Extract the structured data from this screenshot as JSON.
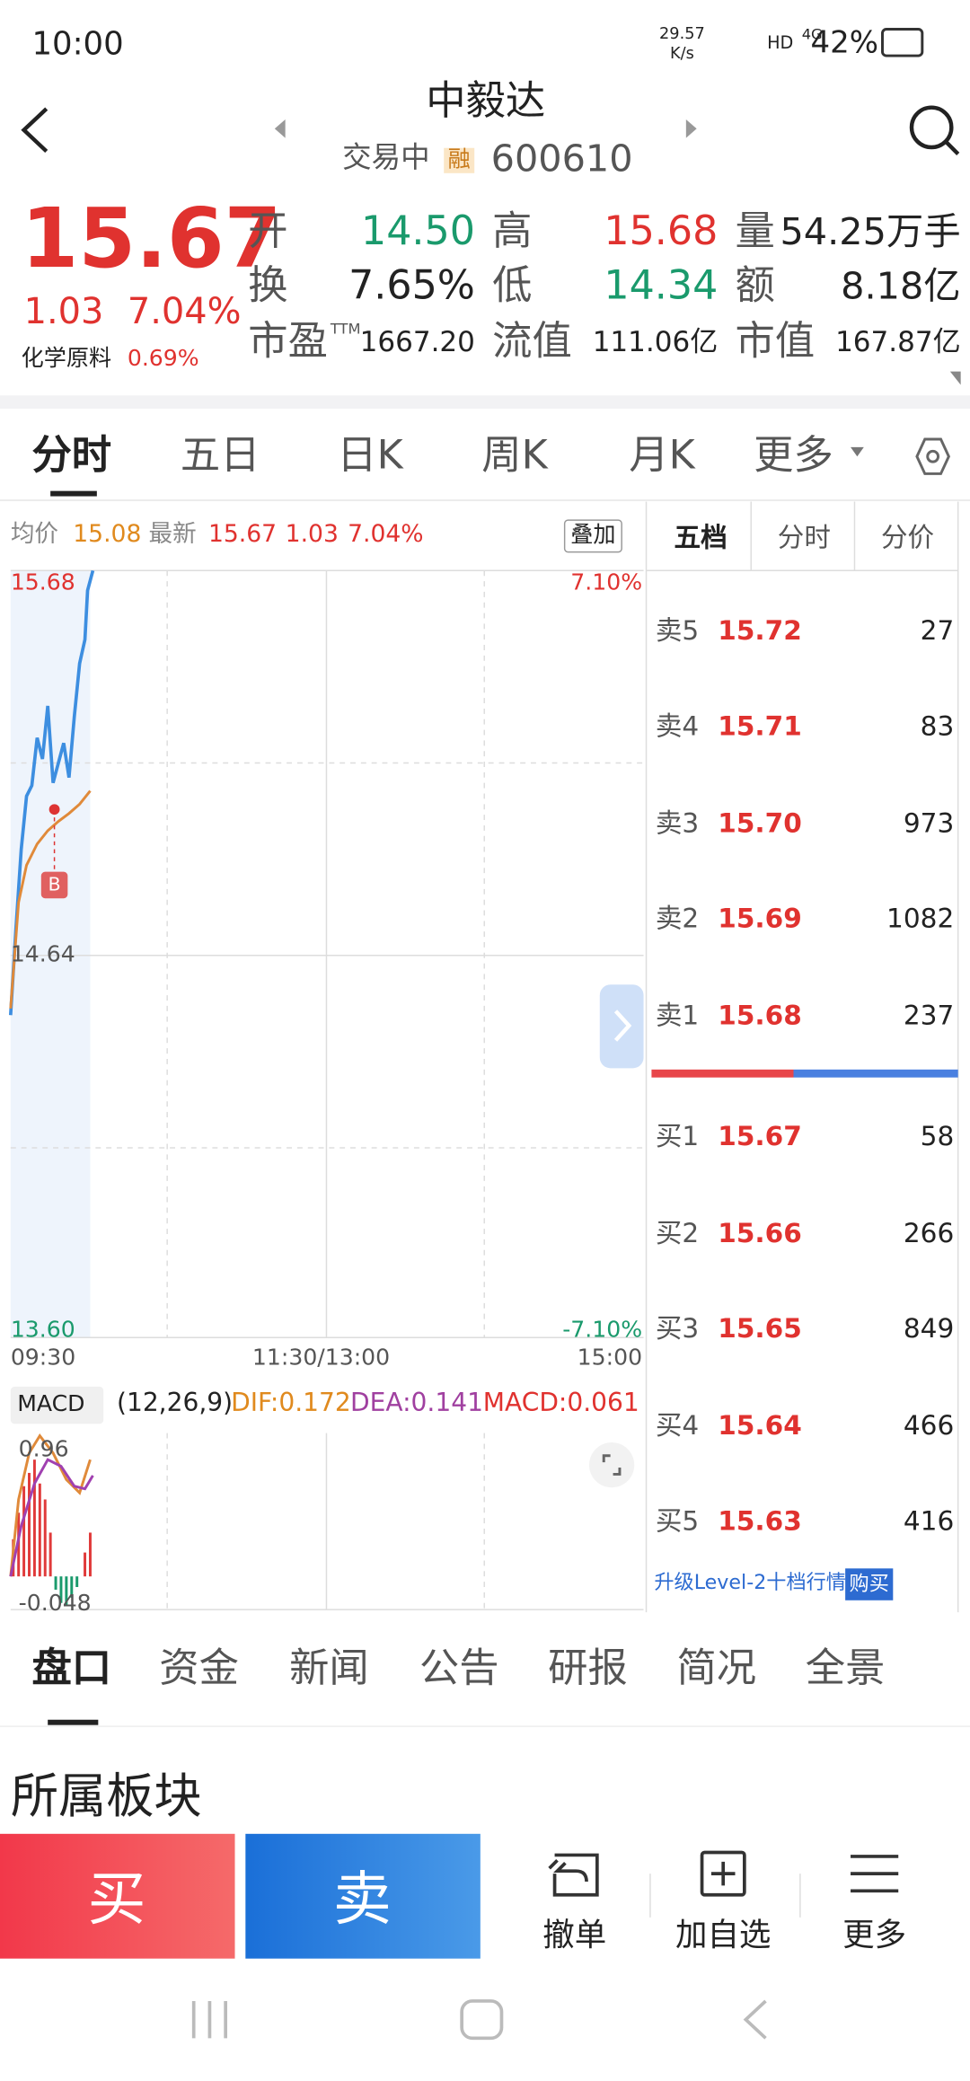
{
  "status": {
    "time": "10:00",
    "speed": "29.57",
    "speed_unit": "K/s",
    "hd": "HD",
    "net": "4G",
    "battery": "42%"
  },
  "header": {
    "title": "中毅达",
    "state": "交易中",
    "badge": "融",
    "code": "600610"
  },
  "quote": {
    "price": "15.67",
    "change": "1.03",
    "pct": "7.04%",
    "sector": "化学原料",
    "sector_pct": "0.69%",
    "stats": [
      [
        {
          "label": "开",
          "value": "14.50"
        },
        {
          "label": "高",
          "value": "15.68"
        },
        {
          "label": "量",
          "value": "54.25万手"
        }
      ],
      [
        {
          "label": "换",
          "value": "7.65%"
        },
        {
          "label": "低",
          "value": "14.34"
        },
        {
          "label": "额",
          "value": "8.18亿"
        }
      ],
      [
        {
          "label": "市盈",
          "sup": "TTM",
          "value": "1667.20"
        },
        {
          "label": "流值",
          "value": "111.06亿"
        },
        {
          "label": "市值",
          "value": "167.87亿"
        }
      ]
    ]
  },
  "tabs": [
    "分时",
    "五日",
    "日K",
    "周K",
    "月K",
    "更多"
  ],
  "chart": {
    "avg_label": "均价",
    "avg": "15.08",
    "last_label": "最新",
    "last": "15.67",
    "change": "1.03",
    "pct": "7.04%",
    "overlay": "叠加",
    "y_top": "15.68",
    "y_mid": "14.64",
    "y_bottom": "13.60",
    "pct_top": "7.10%",
    "pct_bottom": "-7.10%",
    "times": [
      "09:30",
      "11:30/13:00",
      "15:00"
    ],
    "marker": "B"
  },
  "macd": {
    "name": "MACD",
    "params": "(12,26,9)",
    "dif": "DIF:0.172",
    "dea": "DEA:0.141",
    "macd": "MACD:0.061",
    "top": "0.96",
    "bottom": "-0.048"
  },
  "orderbook": {
    "tabs": [
      "五档",
      "分时",
      "分价"
    ],
    "sell": [
      {
        "label": "卖5",
        "price": "15.72",
        "vol": "27"
      },
      {
        "label": "卖4",
        "price": "15.71",
        "vol": "83"
      },
      {
        "label": "卖3",
        "price": "15.70",
        "vol": "973"
      },
      {
        "label": "卖2",
        "price": "15.69",
        "vol": "1082"
      },
      {
        "label": "卖1",
        "price": "15.68",
        "vol": "237"
      }
    ],
    "buy": [
      {
        "label": "买1",
        "price": "15.67",
        "vol": "58"
      },
      {
        "label": "买2",
        "price": "15.66",
        "vol": "266"
      },
      {
        "label": "买3",
        "price": "15.65",
        "vol": "849"
      },
      {
        "label": "买4",
        "price": "15.64",
        "vol": "466"
      },
      {
        "label": "买5",
        "price": "15.63",
        "vol": "416"
      }
    ],
    "upgrade": "升级Level-2十档行情",
    "buy_btn": "购买"
  },
  "bottom_tabs": [
    "盘口",
    "资金",
    "新闻",
    "公告",
    "研报",
    "简况",
    "全景"
  ],
  "section": "所属板块",
  "actions": {
    "buy": "买",
    "sell": "卖",
    "items": [
      "撤单",
      "加自选",
      "更多"
    ]
  }
}
